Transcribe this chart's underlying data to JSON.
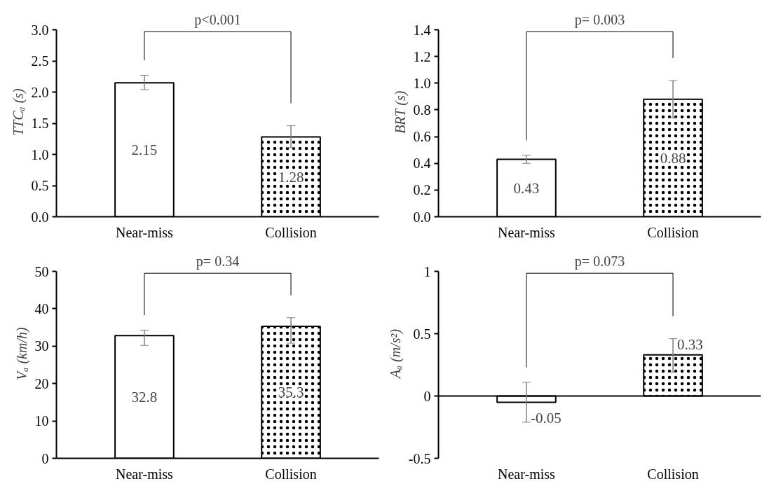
{
  "chart_data": [
    {
      "type": "bar",
      "ylabel": "TTCₐ (s)",
      "categories": [
        "Near-miss",
        "Collision"
      ],
      "values": [
        2.15,
        1.28
      ],
      "colors": [
        "#ffffff",
        "#ffffff"
      ],
      "errors": [
        [
          2.04,
          2.27
        ],
        [
          1.11,
          1.46
        ]
      ],
      "ylim": [
        0,
        3
      ],
      "yticks": [
        {
          "value": 0,
          "label": "0.0"
        },
        {
          "value": 0.5,
          "label": "0.5"
        },
        {
          "value": 1,
          "label": "1.0"
        },
        {
          "value": 1.5,
          "label": "1.5"
        },
        {
          "value": 2,
          "label": "2.0"
        },
        {
          "value": 2.5,
          "label": "2.5"
        },
        {
          "value": 3,
          "label": "3.0"
        }
      ],
      "data_labels": true,
      "annotations": [
        "p<0.001"
      ]
    },
    {
      "type": "bar",
      "ylabel": "BRT (s)",
      "categories": [
        "Near-miss",
        "Collision"
      ],
      "values": [
        0.43,
        0.88
      ],
      "colors": [
        "#ffffff",
        "#ffffff"
      ],
      "errors": [
        [
          0.4,
          0.46
        ],
        [
          0.74,
          1.02
        ]
      ],
      "ylim": [
        0,
        1.4
      ],
      "yticks": [
        {
          "value": 0,
          "label": "0.0"
        },
        {
          "value": 0.2,
          "label": "0.2"
        },
        {
          "value": 0.4,
          "label": "0.4"
        },
        {
          "value": 0.6,
          "label": "0.6"
        },
        {
          "value": 0.8,
          "label": "0.8"
        },
        {
          "value": 1,
          "label": "1.0"
        },
        {
          "value": 1.2,
          "label": "1.2"
        },
        {
          "value": 1.4,
          "label": "1.4"
        }
      ],
      "data_labels": true,
      "annotations": [
        "p= 0.003"
      ]
    },
    {
      "type": "bar",
      "ylabel": "Vₐ (km/h)",
      "categories": [
        "Near-miss",
        "Collision"
      ],
      "values": [
        32.8,
        35.3
      ],
      "colors": [
        "#ffffff",
        "#ffffff"
      ],
      "errors": [
        [
          30.2,
          34.3
        ],
        [
          30.8,
          37.6
        ]
      ],
      "ylim": [
        0,
        50
      ],
      "yticks": [
        0,
        10,
        20,
        30,
        40,
        50
      ],
      "data_labels": true,
      "annotations": [
        "p= 0.34"
      ]
    },
    {
      "type": "bar",
      "ylabel": "Aₐ (m/s²)",
      "categories": [
        "Near-miss",
        "Collision"
      ],
      "values": [
        -0.05,
        0.33
      ],
      "colors": [
        "#ffffff",
        "#ffffff"
      ],
      "errors": [
        [
          -0.21,
          0.11
        ],
        [
          0.19,
          0.46
        ]
      ],
      "ylim": [
        -0.5,
        1
      ],
      "yticks": [
        -0.5,
        0,
        0.5,
        1
      ],
      "data_labels": true,
      "annotations": [
        "p= 0.073"
      ]
    }
  ]
}
